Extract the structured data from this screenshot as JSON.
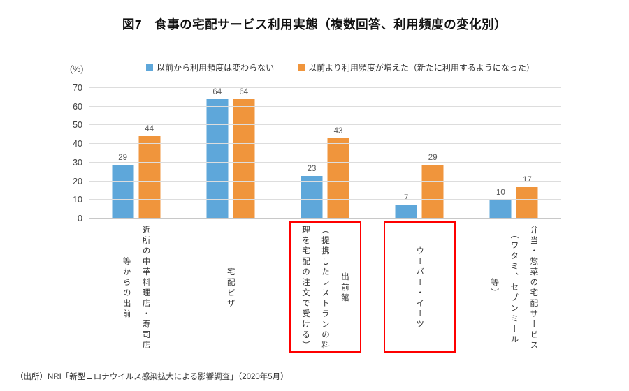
{
  "title": "図7　食事の宅配サービス利用実態（複数回答、利用頻度の変化別）",
  "source": "（出所）NRI「新型コロナウイルス感染拡大による影響調査」（2020年5月）",
  "colors": {
    "series1": "#5EA7DA",
    "series2": "#F0953C",
    "gridline": "#DDDDDD",
    "axis_line": "#C8C8C8",
    "value_label": "#595959",
    "tick_label": "#404040",
    "cat_label": "#333333",
    "highlight_box": "#FE0000"
  },
  "chart_data": {
    "type": "bar",
    "title": "図7　食事の宅配サービス利用実態（複数回答、利用頻度の変化別）",
    "unit_label": "(%)",
    "categories": [
      "近所の中華料理店・寿司店\n等からの出前",
      "宅配ピザ",
      "出前館\n（提携したレストランの料\n理を宅配の注文で受ける）",
      "ウーバー・イーツ",
      "弁当・惣菜の宅配サービス\n（ワタミ、セブンミール\n等）"
    ],
    "highlighted_category_indexes": [
      2,
      3
    ],
    "series": [
      {
        "name": "以前から利用頻度は変わらない",
        "color": "#5EA7DA",
        "values": [
          29,
          64,
          23,
          7,
          10
        ]
      },
      {
        "name": "以前より利用頻度が増えた（新たに利用するようになった）",
        "color": "#F0953C",
        "values": [
          44,
          64,
          43,
          29,
          17
        ]
      }
    ],
    "ylim": [
      0,
      70
    ],
    "yticks": [
      0,
      10,
      20,
      30,
      40,
      50,
      60,
      70
    ],
    "grid": true,
    "legend_position": "top"
  }
}
